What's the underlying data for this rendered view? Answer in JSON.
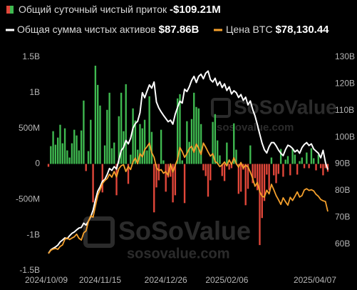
{
  "legend": {
    "flow_label": "Общий суточный чистый приток",
    "flow_value": "-$109.21M",
    "assets_label": "Общая сумма чистых активов",
    "assets_value": "$87.86B",
    "btc_label": "Цена BTC",
    "btc_value": "$78,130.44"
  },
  "watermarks": [
    {
      "brand": "SoSoValue",
      "site": "sosovalue.com"
    },
    {
      "brand": "SoSoValue",
      "site": "sosovalue.com"
    }
  ],
  "chart_data": {
    "type": "bar-line",
    "categories": [
      "2024/10/09",
      null,
      null,
      null,
      null,
      null,
      null,
      null,
      null,
      null,
      null,
      null,
      null,
      null,
      null,
      null,
      null,
      null,
      null,
      null,
      null,
      null,
      "2024/11/15",
      null,
      null,
      null,
      null,
      null,
      null,
      null,
      null,
      null,
      null,
      null,
      null,
      null,
      null,
      null,
      null,
      null,
      null,
      null,
      null,
      null,
      null,
      null,
      null,
      null,
      null,
      null,
      "2024/12/26",
      null,
      null,
      null,
      null,
      null,
      null,
      null,
      null,
      null,
      null,
      null,
      null,
      null,
      null,
      null,
      null,
      null,
      null,
      null,
      null,
      null,
      null,
      null,
      null,
      null,
      "2025/02/06",
      null,
      null,
      null,
      null,
      null,
      null,
      null,
      null,
      null,
      null,
      null,
      null,
      null,
      null,
      null,
      null,
      null,
      null,
      null,
      null,
      null,
      null,
      null,
      null,
      null,
      null,
      null,
      null,
      null,
      null,
      null,
      null,
      null,
      null,
      null,
      null,
      null,
      null,
      null,
      null,
      null,
      null,
      "2025/04/07"
    ],
    "ylim": [
      -1500,
      1500
    ],
    "yticks": [
      {
        "value": 1500,
        "label": "1.5B"
      },
      {
        "value": 1000,
        "label": "1B"
      },
      {
        "value": 500,
        "label": "500M"
      },
      0,
      {
        "value": -500,
        "label": "-500M"
      },
      {
        "value": -1000,
        "label": "-1B"
      },
      {
        "value": -1500,
        "label": "-1.5B"
      }
    ],
    "y2lim": [
      50,
      130
    ],
    "y2ticks": [
      {
        "value": 130,
        "label": "130B"
      },
      {
        "value": 120,
        "label": "120B"
      },
      {
        "value": 110,
        "label": "110B"
      },
      {
        "value": 100,
        "label": "100B"
      },
      {
        "value": 90,
        "label": "90B"
      },
      {
        "value": 80,
        "label": "80B"
      },
      {
        "value": 70,
        "label": "70B"
      },
      {
        "value": 60,
        "label": "60B"
      }
    ],
    "y3lim": [
      54000,
      141000
    ],
    "grid": false,
    "series": [
      {
        "name": "flow",
        "type": "bar",
        "positive_color": "#3fb950",
        "negative_color": "#e2473a",
        "values": [
          -40,
          250,
          460,
          270,
          370,
          550,
          290,
          500,
          190,
          90,
          290,
          480,
          400,
          190,
          470,
          890,
          -100,
          180,
          620,
          -540,
          1380,
          1110,
          820,
          -400,
          260,
          760,
          1000,
          220,
          300,
          -440,
          670,
          1000,
          460,
          1120,
          -280,
          130,
          780,
          610,
          200,
          560,
          500,
          620,
          190,
          950,
          450,
          -680,
          -330,
          -230,
          480,
          50,
          -390,
          -190,
          -180,
          -540,
          -440,
          920,
          980,
          50,
          -550,
          600,
          310,
          630,
          1000,
          800,
          780,
          560,
          -90,
          -170,
          -460,
          -230,
          590,
          700,
          330,
          120,
          -170,
          -240,
          300,
          -80,
          -60,
          570,
          200,
          -420,
          -390,
          -80,
          -580,
          -350,
          260,
          -270,
          -200,
          -370,
          -1140,
          -760,
          -520,
          -150,
          -370,
          90,
          -160,
          -270,
          -140,
          210,
          -180,
          60,
          110,
          -160,
          210,
          130,
          -150,
          40,
          90,
          -60,
          160,
          -60,
          220,
          80,
          -90,
          130,
          -60,
          -160,
          -60,
          -109.21
        ]
      },
      {
        "name": "assets",
        "type": "line",
        "axis": "y2",
        "color": "#ffffff",
        "values": [
          56.5,
          57.8,
          58.4,
          58.9,
          59.6,
          60.8,
          61.5,
          62.3,
          62.0,
          63.1,
          64.0,
          64.5,
          65.3,
          66.0,
          66.2,
          67.8,
          67.1,
          68.5,
          70.2,
          72.6,
          76.5,
          79.8,
          81.4,
          83.5,
          84.2,
          86.0,
          88.3,
          87.6,
          89.0,
          88.1,
          91.5,
          95.0,
          96.2,
          98.8,
          97.5,
          99.6,
          103.4,
          105.1,
          106.0,
          109.2,
          116.7,
          114.8,
          117.3,
          119.6,
          118.4,
          120.7,
          113.2,
          111.0,
          109.5,
          108.2,
          107.0,
          105.8,
          106.4,
          104.9,
          108.6,
          111.2,
          113.5,
          112.8,
          118.0,
          117.1,
          118.9,
          121.3,
          122.8,
          120.5,
          122.8,
          123.6,
          121.9,
          124.0,
          124.8,
          121.6,
          120.7,
          122.1,
          119.4,
          120.8,
          118.6,
          120.0,
          117.5,
          118.9,
          116.2,
          117.4,
          116.7,
          114.9,
          116.0,
          113.8,
          115.0,
          112.1,
          113.6,
          110.4,
          108.0,
          104.7,
          101.2,
          97.8,
          95.3,
          94.1,
          96.5,
          98.0,
          98.0,
          96.8,
          95.2,
          94.0,
          93.1,
          95.4,
          97.0,
          96.6,
          95.8,
          94.5,
          95.2,
          94.0,
          96.1,
          97.3,
          98.0,
          96.9,
          97.5,
          95.6,
          94.8,
          94.0,
          92.3,
          95.1,
          90.6,
          87.86
        ]
      },
      {
        "name": "btc",
        "type": "line",
        "axis": "y3",
        "color": "#f5a02c",
        "values": [
          61000,
          62300,
          62800,
          63100,
          62700,
          63900,
          64500,
          66800,
          67400,
          66700,
          67300,
          67800,
          68900,
          67200,
          66500,
          69400,
          70200,
          74000,
          76400,
          75800,
          80300,
          84600,
          87000,
          89500,
          90700,
          91500,
          93300,
          92100,
          94400,
          92200,
          95600,
          96800,
          97200,
          94400,
          96500,
          95200,
          98300,
          99900,
          97600,
          101700,
          100400,
          103300,
          104500,
          106000,
          102100,
          100200,
          96000,
          94800,
          95200,
          93700,
          94400,
          92800,
          97500,
          94200,
          96900,
          99400,
          104200,
          102500,
          100200,
          101700,
          103800,
          104700,
          102300,
          105600,
          103900,
          101400,
          106000,
          104300,
          102400,
          100700,
          101700,
          98500,
          97800,
          96400,
          97100,
          98300,
          96700,
          99100,
          97300,
          100000,
          97600,
          96200,
          98100,
          95800,
          97000,
          96300,
          94200,
          91600,
          88400,
          90000,
          86200,
          84300,
          84000,
          86800,
          85300,
          89200,
          87000,
          84600,
          82900,
          81000,
          83700,
          82100,
          80700,
          83900,
          82600,
          84300,
          86100,
          84000,
          84600,
          86900,
          87400,
          86700,
          87000,
          86500,
          85100,
          84300,
          83000,
          82500,
          82200,
          78130.44
        ]
      }
    ]
  }
}
